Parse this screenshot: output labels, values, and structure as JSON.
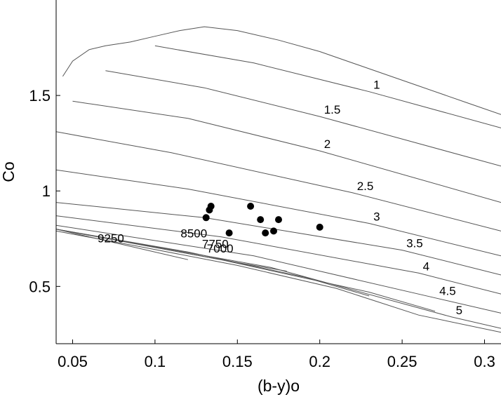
{
  "chart_data": {
    "type": "scatter",
    "title": "",
    "xlabel": "(b-y)o",
    "ylabel": "Co",
    "xlim": [
      0.04,
      0.31
    ],
    "ylim": [
      0.2,
      2.0
    ],
    "xticks": [
      0.05,
      0.1,
      0.15,
      0.2,
      0.25,
      0.3
    ],
    "xtick_labels": [
      "0.05",
      "0.1",
      "0.15",
      "0.2",
      "0.25",
      "0.3"
    ],
    "yticks": [
      0.5,
      1.0,
      1.5
    ],
    "ytick_labels": [
      "0.5",
      "1",
      "1.5"
    ],
    "grid": false,
    "points": [
      {
        "x": 0.131,
        "y": 0.86
      },
      {
        "x": 0.133,
        "y": 0.9
      },
      {
        "x": 0.134,
        "y": 0.92
      },
      {
        "x": 0.145,
        "y": 0.78
      },
      {
        "x": 0.158,
        "y": 0.92
      },
      {
        "x": 0.164,
        "y": 0.85
      },
      {
        "x": 0.167,
        "y": 0.78
      },
      {
        "x": 0.172,
        "y": 0.79
      },
      {
        "x": 0.175,
        "y": 0.85
      },
      {
        "x": 0.2,
        "y": 0.81
      }
    ],
    "temperature_lines": [
      {
        "label": "9250",
        "x": [
          0.04,
          0.06,
          0.09,
          0.12
        ],
        "y": [
          0.8,
          0.76,
          0.7,
          0.64
        ]
      },
      {
        "label": "8500",
        "x": [
          0.04,
          0.09,
          0.14,
          0.18
        ],
        "y": [
          0.8,
          0.72,
          0.64,
          0.58
        ]
      },
      {
        "label": "7750",
        "x": [
          0.04,
          0.12,
          0.19,
          0.23
        ],
        "y": [
          0.8,
          0.68,
          0.55,
          0.45
        ]
      },
      {
        "label": "7000",
        "x": [
          0.04,
          0.14,
          0.23,
          0.27
        ],
        "y": [
          0.8,
          0.64,
          0.47,
          0.37
        ]
      },
      {
        "label": "",
        "x": [
          0.04,
          0.09,
          0.15,
          0.21,
          0.26,
          0.31
        ],
        "y": [
          0.79,
          0.71,
          0.61,
          0.49,
          0.35,
          0.26
        ]
      }
    ],
    "gravity_lines": [
      {
        "label": "1",
        "x": [
          0.1,
          0.16,
          0.23,
          0.31
        ],
        "y": [
          1.76,
          1.67,
          1.52,
          1.33
        ]
      },
      {
        "label": "1.5",
        "x": [
          0.07,
          0.13,
          0.2,
          0.31
        ],
        "y": [
          1.63,
          1.54,
          1.39,
          1.13
        ]
      },
      {
        "label": "2",
        "x": [
          0.05,
          0.12,
          0.2,
          0.31
        ],
        "y": [
          1.47,
          1.38,
          1.21,
          0.94
        ]
      },
      {
        "label": "2.5",
        "x": [
          0.04,
          0.11,
          0.22,
          0.31
        ],
        "y": [
          1.31,
          1.2,
          0.99,
          0.79
        ]
      },
      {
        "label": "3",
        "x": [
          0.04,
          0.12,
          0.23,
          0.31
        ],
        "y": [
          1.11,
          1.01,
          0.83,
          0.66
        ]
      },
      {
        "label": "3.5",
        "x": [
          0.04,
          0.13,
          0.25,
          0.31
        ],
        "y": [
          0.94,
          0.86,
          0.69,
          0.56
        ]
      },
      {
        "label": "4",
        "x": [
          0.04,
          0.14,
          0.26,
          0.31
        ],
        "y": [
          0.87,
          0.76,
          0.57,
          0.46
        ]
      },
      {
        "label": "4.5",
        "x": [
          0.04,
          0.16,
          0.27,
          0.31
        ],
        "y": [
          0.82,
          0.66,
          0.44,
          0.36
        ]
      },
      {
        "label": "5",
        "x": [
          0.04,
          0.17,
          0.28,
          0.31
        ],
        "y": [
          0.8,
          0.6,
          0.34,
          0.28
        ]
      }
    ],
    "envelope_top": {
      "x": [
        0.044,
        0.05,
        0.06,
        0.07,
        0.085,
        0.1,
        0.115,
        0.13,
        0.15,
        0.175,
        0.2,
        0.23,
        0.26,
        0.29,
        0.31
      ],
      "y": [
        1.6,
        1.68,
        1.74,
        1.76,
        1.78,
        1.81,
        1.84,
        1.86,
        1.84,
        1.79,
        1.73,
        1.64,
        1.55,
        1.46,
        1.4
      ]
    }
  }
}
